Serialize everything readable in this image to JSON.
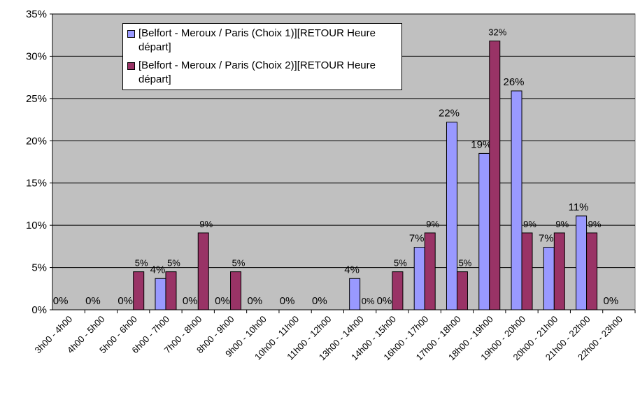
{
  "chart_data": {
    "type": "bar",
    "categories": [
      "3h00 - 4h00",
      "4h00 - 5h00",
      "5h00 - 6h00",
      "6h00 - 7h00",
      "7h00 - 8h00",
      "8h00 - 9h00",
      "9h00 - 10h00",
      "10h00 - 11h00",
      "11h00 - 12h00",
      "13h00 - 14h00",
      "14h00 - 15h00",
      "16h00 - 17h00",
      "17h00 - 18h00",
      "18h00 - 19h00",
      "19h00 - 20h00",
      "20h00 - 21h00",
      "21h00 - 22h00",
      "22h00 - 23h00"
    ],
    "series": [
      {
        "name": "[Belfort - Meroux / Paris (Choix 1)][RETOUR Heure départ]",
        "color": "#9999ff",
        "values": [
          0,
          0,
          0,
          3.7,
          0,
          0,
          0,
          0,
          0,
          3.7,
          0,
          7.4,
          22.2,
          18.5,
          25.9,
          7.4,
          11.1,
          0
        ],
        "value_labels": [
          "0%",
          "0%",
          "0%",
          "4%",
          "0%",
          "0%",
          "0%",
          "0%",
          "0%",
          "4%",
          "0%",
          "7%",
          "22%",
          "19%",
          "26%",
          "7%",
          "11%",
          "0%"
        ]
      },
      {
        "name": "[Belfort - Meroux / Paris (Choix 2)][RETOUR Heure départ]",
        "color": "#993366",
        "values": [
          null,
          null,
          4.5,
          4.5,
          9.1,
          4.5,
          null,
          null,
          null,
          0,
          4.5,
          9.1,
          4.5,
          31.8,
          9.1,
          9.1,
          9.1,
          null
        ],
        "value_labels": [
          null,
          null,
          "5%",
          "5%",
          "9%",
          "5%",
          null,
          null,
          null,
          "0%",
          "5%",
          "9%",
          "5%",
          "32%",
          "9%",
          "9%",
          "9%",
          null
        ]
      }
    ],
    "ylim": [
      0,
      35
    ],
    "yticks": [
      {
        "value": 0,
        "label": "0%"
      },
      {
        "value": 5,
        "label": "5%"
      },
      {
        "value": 10,
        "label": "10%"
      },
      {
        "value": 15,
        "label": "15%"
      },
      {
        "value": 20,
        "label": "20%"
      },
      {
        "value": 25,
        "label": "25%"
      },
      {
        "value": 30,
        "label": "30%"
      },
      {
        "value": 35,
        "label": "35%"
      }
    ],
    "grid": true
  }
}
